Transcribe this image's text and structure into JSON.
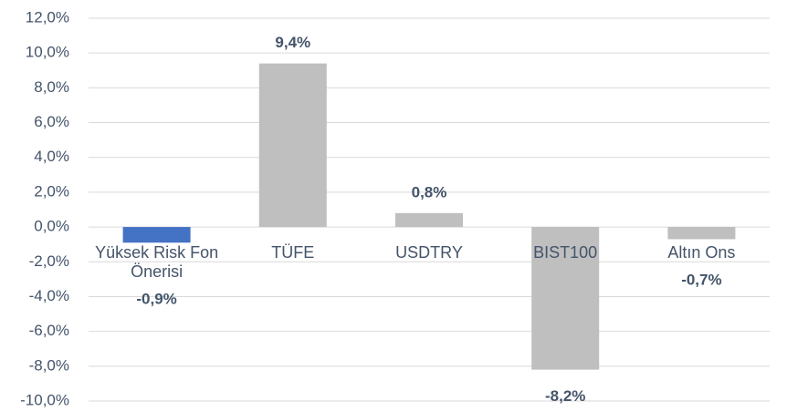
{
  "chart_data": {
    "type": "bar",
    "categories": [
      "Yüksek Risk Fon Önerisi",
      "TÜFE",
      "USDTRY",
      "BIST100",
      "Altın Ons"
    ],
    "values": [
      -0.9,
      9.4,
      0.8,
      -8.2,
      -0.7
    ],
    "value_labels": [
      "-0,9%",
      "9,4%",
      "0,8%",
      "-8,2%",
      "-0,7%"
    ],
    "colors": [
      "#4472c4",
      "#bfbfbf",
      "#bfbfbf",
      "#bfbfbf",
      "#bfbfbf"
    ],
    "ylim": [
      -10,
      12
    ],
    "yticks": [
      {
        "value": -10,
        "label": "-10,0%"
      },
      {
        "value": -8,
        "label": "-8,0%"
      },
      {
        "value": -6,
        "label": "-6,0%"
      },
      {
        "value": -4,
        "label": "-4,0%"
      },
      {
        "value": -2,
        "label": "-2,0%"
      },
      {
        "value": 0,
        "label": "0,0%"
      },
      {
        "value": 2,
        "label": "2,0%"
      },
      {
        "value": 4,
        "label": "4,0%"
      },
      {
        "value": 6,
        "label": "6,0%"
      },
      {
        "value": 8,
        "label": "8,0%"
      },
      {
        "value": 10,
        "label": "10,0%"
      },
      {
        "value": 12,
        "label": "12,0%"
      }
    ],
    "grid": true
  }
}
